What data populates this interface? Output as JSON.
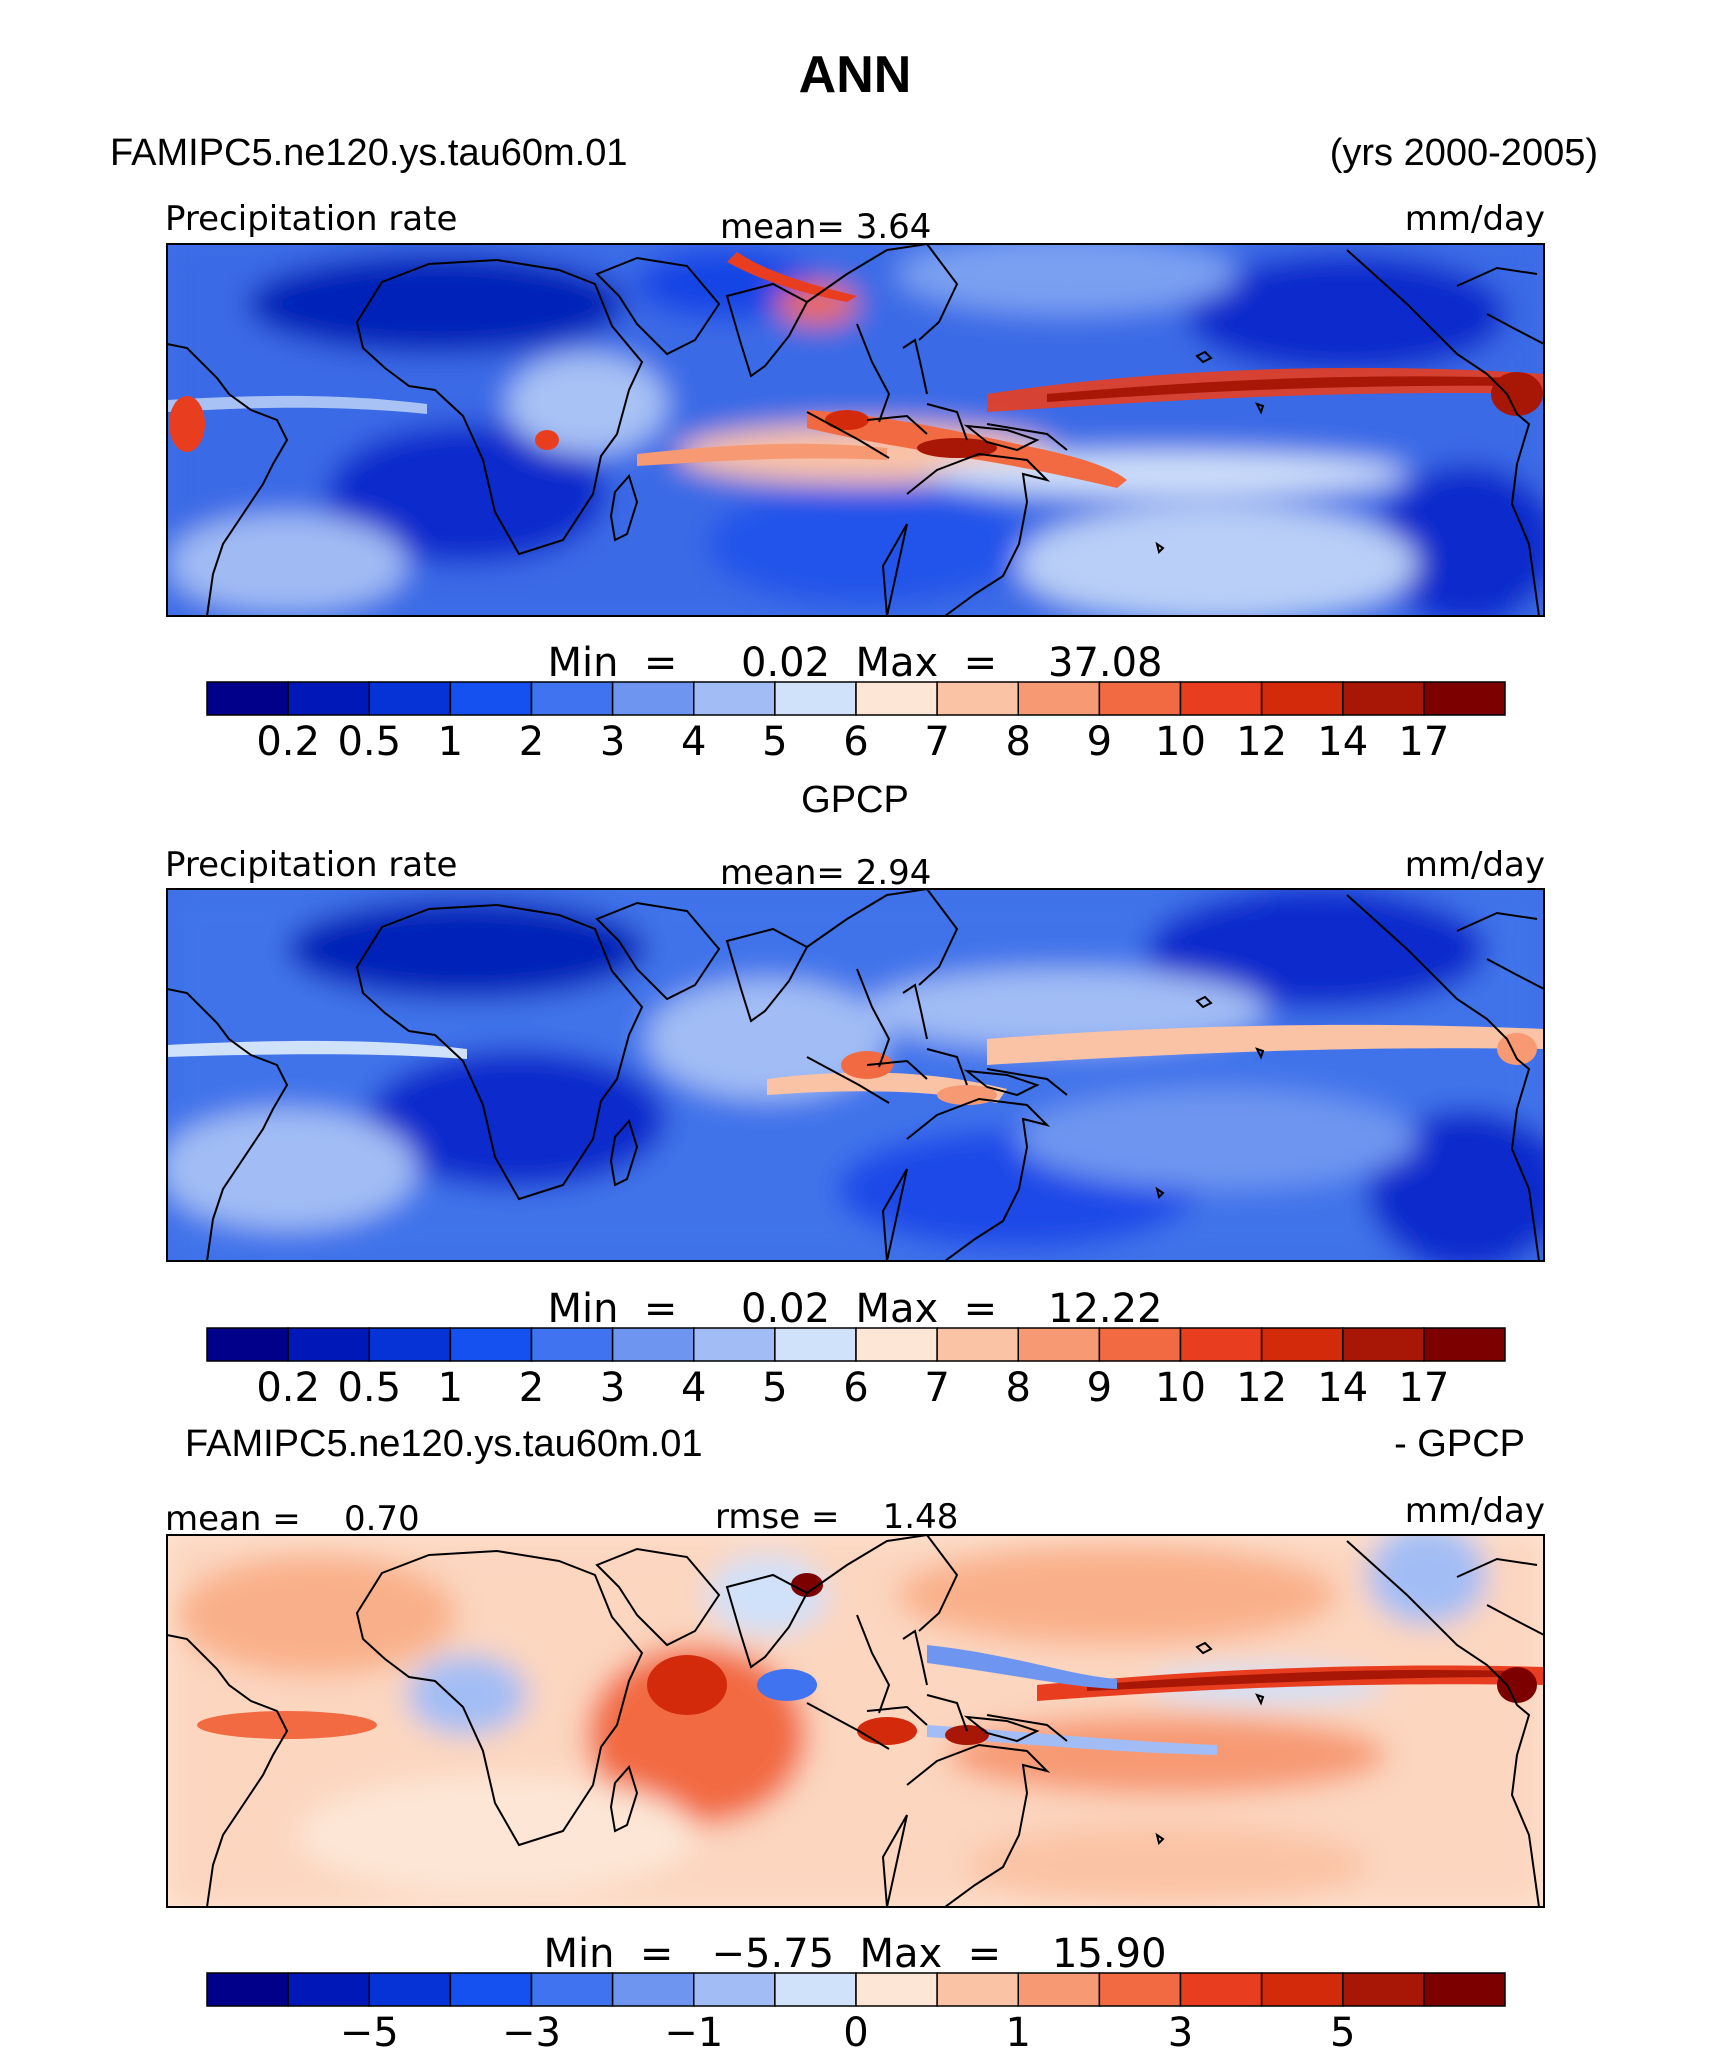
{
  "header": {
    "title": "ANN",
    "case_name": "FAMIPC5.ne120.ys.tau60m.01",
    "years": "(yrs 2000-2005)"
  },
  "panels": [
    {
      "id": "model",
      "left_label": "Precipitation rate",
      "center_label": "mean=    3.64",
      "right_label": "mm/day",
      "stats": "Min  =     0.02  Max  =    37.08"
    },
    {
      "id": "obs",
      "section_title": "GPCP",
      "left_label": "Precipitation rate",
      "center_label": "mean=    2.94",
      "right_label": "mm/day",
      "stats": "Min  =     0.02  Max  =    12.22"
    },
    {
      "id": "diff",
      "section_title_left": "FAMIPC5.ne120.ys.tau60m.01",
      "section_title_right": "- GPCP",
      "left_label": "mean =    0.70",
      "center_label": "rmse =    1.48",
      "right_label": "mm/day",
      "stats": "Min  =   −5.75  Max  =    15.90"
    }
  ],
  "colorbars": {
    "abs_colors": [
      "#00008a",
      "#0018b8",
      "#0533d6",
      "#1550f0",
      "#3f73f0",
      "#6e96f0",
      "#a2bdf5",
      "#d0e1fa",
      "#fde6d6",
      "#fbc3a5",
      "#f79a73",
      "#f26a42",
      "#e83e1f",
      "#d32a0b",
      "#a81605",
      "#7d0000"
    ],
    "abs_ticks": [
      "0.2",
      "0.5",
      "1",
      "2",
      "3",
      "4",
      "5",
      "6",
      "7",
      "8",
      "9",
      "10",
      "12",
      "14",
      "17"
    ],
    "diff_colors": [
      "#00008a",
      "#0018b8",
      "#0533d6",
      "#1550f0",
      "#3f73f0",
      "#6e96f0",
      "#a2bdf5",
      "#d0e1fa",
      "#fde6d6",
      "#fbc3a5",
      "#f79a73",
      "#f26a42",
      "#e83e1f",
      "#d32a0b",
      "#a81605",
      "#7d0000"
    ],
    "diff_ticks": [
      "−5",
      "−3",
      "−1",
      "0",
      "1",
      "3",
      "5"
    ]
  },
  "chart_data": [
    {
      "type": "heatmap",
      "title": "FAMIPC5.ne120.ys.tau60m.01 Precipitation rate",
      "units": "mm/day",
      "mean": 3.64,
      "min": 0.02,
      "max": 37.08,
      "levels": [
        0.2,
        0.5,
        1,
        2,
        3,
        4,
        5,
        6,
        7,
        8,
        9,
        10,
        12,
        14,
        17
      ]
    },
    {
      "type": "heatmap",
      "title": "GPCP Precipitation rate",
      "units": "mm/day",
      "mean": 2.94,
      "min": 0.02,
      "max": 12.22,
      "levels": [
        0.2,
        0.5,
        1,
        2,
        3,
        4,
        5,
        6,
        7,
        8,
        9,
        10,
        12,
        14,
        17
      ]
    },
    {
      "type": "heatmap",
      "title": "FAMIPC5.ne120.ys.tau60m.01 - GPCP",
      "units": "mm/day",
      "mean": 0.7,
      "rmse": 1.48,
      "min": -5.75,
      "max": 15.9,
      "levels": [
        -5,
        -3,
        -1,
        0,
        1,
        3,
        5
      ]
    }
  ]
}
